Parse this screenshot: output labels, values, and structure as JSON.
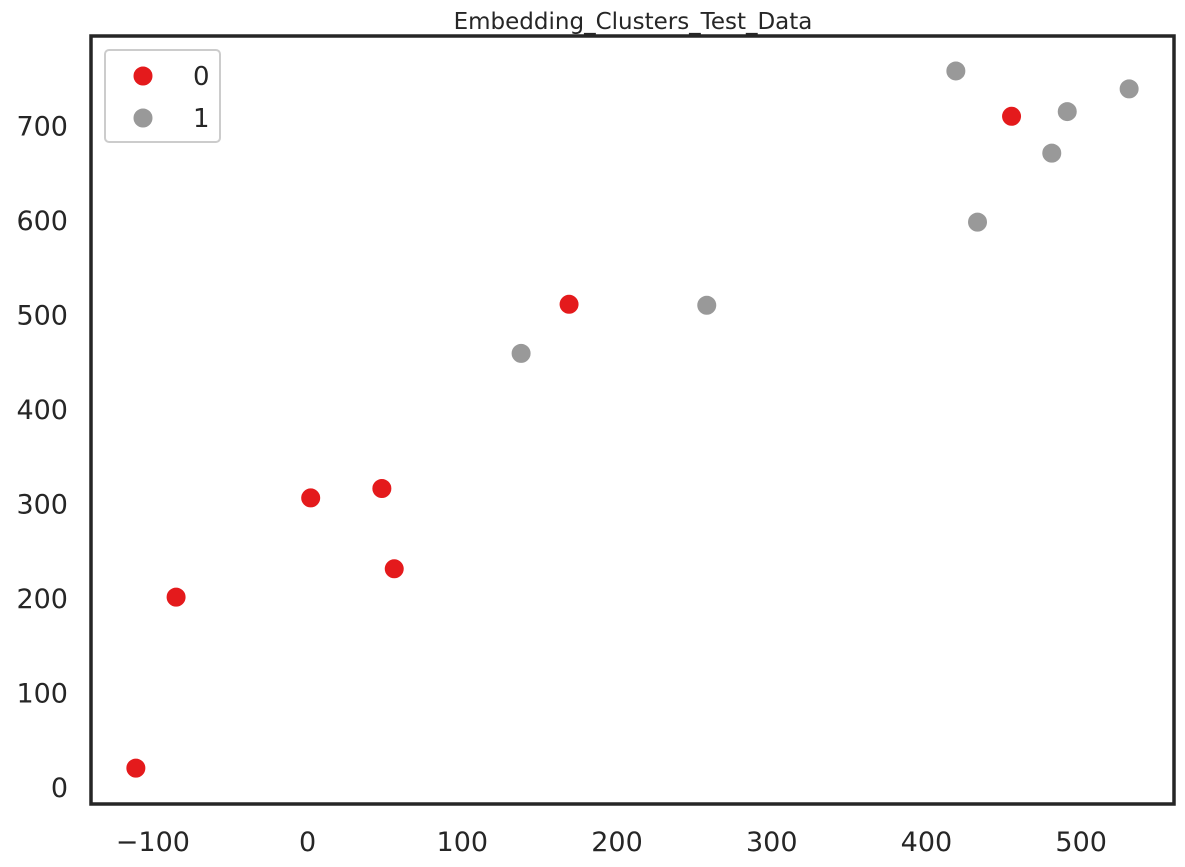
{
  "chart_data": {
    "type": "scatter",
    "title": "Embedding_Clusters_Test_Data",
    "xlabel": "",
    "ylabel": "",
    "xlim": [
      -140,
      560
    ],
    "ylim": [
      -18,
      795
    ],
    "xticks": [
      -100,
      0,
      100,
      200,
      300,
      400,
      500
    ],
    "yticks": [
      0,
      100,
      200,
      300,
      400,
      500,
      600,
      700
    ],
    "xtick_labels": [
      "−100",
      "0",
      "100",
      "200",
      "300",
      "400",
      "500"
    ],
    "ytick_labels": [
      "0",
      "100",
      "200",
      "300",
      "400",
      "500",
      "600",
      "700"
    ],
    "grid": false,
    "legend": {
      "placement": "top-left"
    },
    "series": [
      {
        "name": "0",
        "color": "#e41a1c",
        "points": [
          {
            "x": -111,
            "y": 20
          },
          {
            "x": -85,
            "y": 201
          },
          {
            "x": 2,
            "y": 306
          },
          {
            "x": 48,
            "y": 316
          },
          {
            "x": 56,
            "y": 231
          },
          {
            "x": 169,
            "y": 511
          },
          {
            "x": 455,
            "y": 710
          }
        ]
      },
      {
        "name": "1",
        "color": "#999999",
        "points": [
          {
            "x": 138,
            "y": 459
          },
          {
            "x": 258,
            "y": 510
          },
          {
            "x": 419,
            "y": 758
          },
          {
            "x": 433,
            "y": 598
          },
          {
            "x": 481,
            "y": 671
          },
          {
            "x": 491,
            "y": 715
          },
          {
            "x": 531,
            "y": 739
          }
        ]
      }
    ]
  }
}
